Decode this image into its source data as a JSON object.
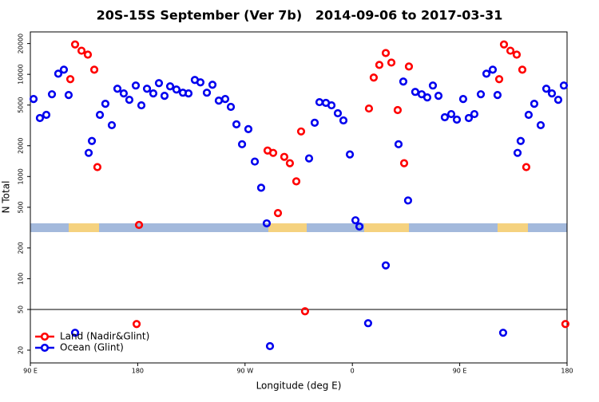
{
  "chart_data": {
    "type": "scatter",
    "title": "20S-15S September (Ver 7b)   2014-09-06 to 2017-03-31",
    "x_label": "Longitude (deg E)",
    "y_label": "N Total",
    "log_y": true,
    "legend": "bottom-left",
    "hline": 50,
    "xlim": [
      90,
      540
    ],
    "ylim": [
      15,
      26000
    ],
    "xticks": [
      {
        "value": 90,
        "label": "90 E"
      },
      180,
      {
        "value": 270,
        "label": "90 W"
      },
      {
        "value": 360,
        "label": "0"
      },
      {
        "value": 450,
        "label": "90 E"
      },
      {
        "value": 540,
        "label": "180"
      }
    ],
    "yticks": [
      20,
      50,
      100,
      200,
      500,
      1000,
      2000,
      5000,
      10000,
      20000
    ],
    "series": [
      {
        "name": "Land (Nadir&Glint)",
        "color": "#ff0000",
        "x": [
          127.5,
          132.9,
          138.2,
          123.5,
          143.6,
          146.2,
          181.1,
          179.1,
          288.9,
          293.6,
          302.9,
          307.6,
          297.6,
          313.0,
          317.0,
          320.3,
          373.9,
          377.9,
          382.6,
          388.0,
          392.7,
          398.0,
          403.4,
          407.4,
          487.1,
          492.5,
          497.8,
          483.1,
          502.5,
          505.8,
          538.6
        ],
        "values": [
          19600,
          17020,
          15570,
          8960,
          11100,
          1236,
          336,
          36,
          1796,
          1703,
          1557,
          1350,
          439,
          896,
          2760,
          48,
          4625,
          9290,
          12360,
          16140,
          13030,
          4467,
          1350,
          11920,
          19600,
          17020,
          15570,
          8960,
          11100,
          1236,
          36
        ]
      },
      {
        "name": "Ocean (Glint)",
        "color": "#0000ee",
        "x": [
          92.7,
          98.0,
          103.4,
          108.1,
          113.4,
          118.1,
          122.1,
          127.5,
          138.9,
          141.6,
          148.3,
          152.9,
          158.3,
          163.0,
          168.3,
          173.0,
          178.4,
          183.1,
          187.8,
          193.1,
          197.8,
          202.5,
          207.2,
          212.5,
          217.9,
          222.6,
          227.9,
          232.6,
          238.0,
          242.7,
          248.0,
          253.4,
          258.1,
          262.8,
          267.5,
          272.8,
          278.2,
          283.5,
          288.2,
          290.9,
          323.7,
          328.4,
          332.4,
          337.8,
          342.5,
          347.8,
          352.5,
          357.9,
          362.6,
          365.9,
          373.2,
          388.0,
          398.7,
          402.7,
          406.7,
          412.7,
          418.1,
          422.8,
          427.5,
          432.2,
          437.5,
          442.9,
          447.6,
          452.9,
          457.6,
          462.3,
          467.7,
          472.4,
          477.7,
          481.7,
          486.4,
          498.5,
          501.1,
          507.8,
          512.5,
          517.9,
          522.6,
          527.3,
          532.6,
          537.3
        ],
        "values": [
          5730,
          3735,
          4010,
          6380,
          10150,
          11100,
          6270,
          29.6,
          1703,
          2226,
          4010,
          5150,
          3180,
          7230,
          6500,
          5630,
          7770,
          4970,
          7230,
          6500,
          8190,
          6160,
          7630,
          7100,
          6610,
          6500,
          8800,
          8340,
          6610,
          7910,
          5530,
          5730,
          4800,
          3240,
          2070,
          2910,
          1400,
          777,
          348,
          21.9,
          1503,
          3357,
          5340,
          5250,
          4970,
          4160,
          3540,
          1644,
          373,
          324,
          36.7,
          135,
          2070,
          8490,
          583,
          6730,
          6380,
          5940,
          7770,
          6160,
          3800,
          4080,
          3600,
          5730,
          3735,
          4080,
          6380,
          10150,
          11100,
          6270,
          29.6,
          1703,
          2226,
          4010,
          5150,
          3180,
          7230,
          6500,
          5630,
          7770
        ]
      }
    ]
  }
}
